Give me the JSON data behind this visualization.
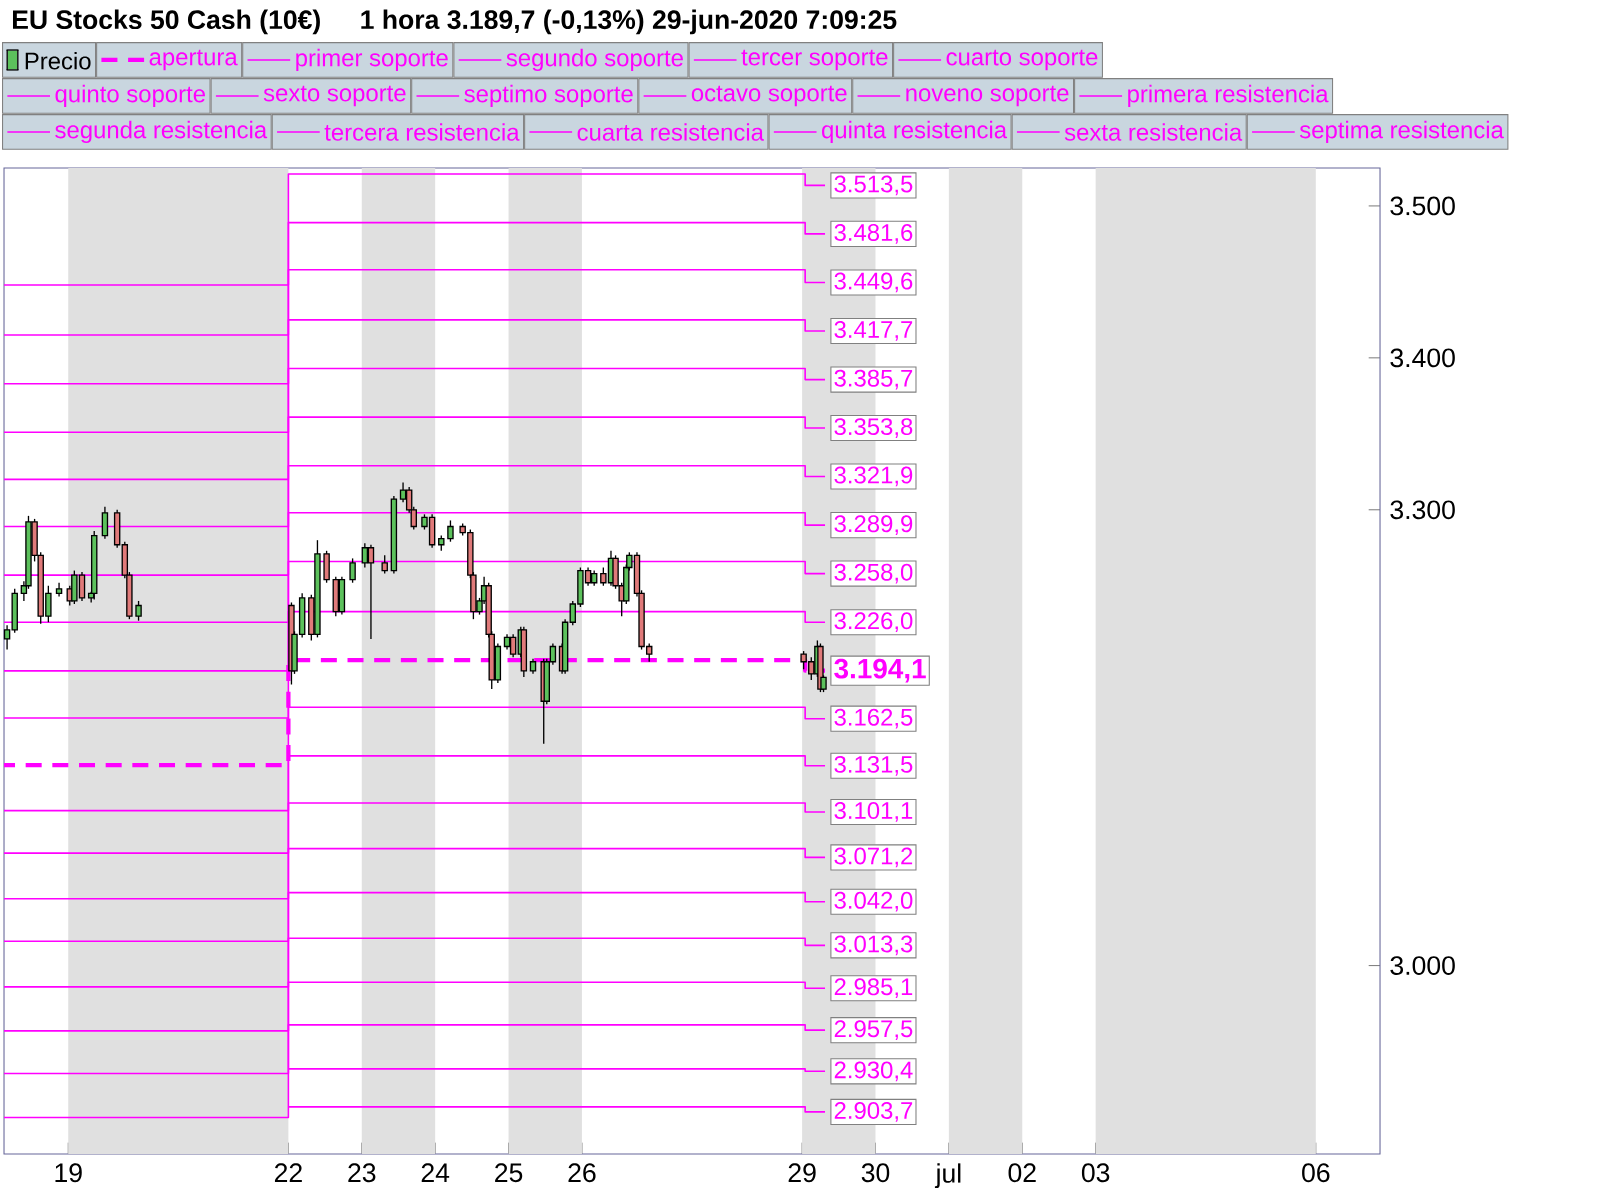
{
  "chart_data": {
    "type": "candlestick",
    "title": "EU Stocks 50 Cash (10€)",
    "subtitle": "1 hora   3.189,7 (-0,13%)   29-jun-2020 7:09:25",
    "xlim": [
      "2020-06-18T03:00",
      "2020-07-06T21:00"
    ],
    "xticks": [
      {
        "value": "2020-06-19",
        "label": "19"
      },
      {
        "value": "2020-06-22",
        "label": "22"
      },
      {
        "value": "2020-06-23",
        "label": "23"
      },
      {
        "value": "2020-06-24",
        "label": "24"
      },
      {
        "value": "2020-06-25",
        "label": "25"
      },
      {
        "value": "2020-06-26",
        "label": "26"
      },
      {
        "value": "2020-06-29",
        "label": "29"
      },
      {
        "value": "2020-06-30",
        "label": "30"
      },
      {
        "value": "2020-07-01",
        "label": "jul"
      },
      {
        "value": "2020-07-02",
        "label": "02"
      },
      {
        "value": "2020-07-03",
        "label": "03"
      },
      {
        "value": "2020-07-06",
        "label": "06"
      }
    ],
    "ylim": [
      2876,
      3525
    ],
    "yticks": [
      {
        "value": 3000,
        "label": "3.000"
      },
      {
        "value": 3300,
        "label": "3.300"
      },
      {
        "value": 3400,
        "label": "3.400"
      },
      {
        "value": 3500,
        "label": "3.500"
      }
    ],
    "legend": "top left",
    "bands": [
      {
        "axis": "x",
        "from": "2020-06-19",
        "to": "2020-06-22",
        "color": "#e0e0e0"
      },
      {
        "axis": "x",
        "from": "2020-06-23",
        "to": "2020-06-24",
        "color": "#e0e0e0"
      },
      {
        "axis": "x",
        "from": "2020-06-25",
        "to": "2020-06-26",
        "color": "#e0e0e0"
      },
      {
        "axis": "x",
        "from": "2020-06-29",
        "to": "2020-06-30",
        "color": "#e0e0e0"
      },
      {
        "axis": "x",
        "from": "2020-07-01",
        "to": "2020-07-02",
        "color": "#e0e0e0"
      },
      {
        "axis": "x",
        "from": "2020-07-03",
        "to": "2020-07-06",
        "color": "#e0e0e0"
      }
    ],
    "series": [
      {
        "type": "candlestick",
        "name": "Precio",
        "color": "#000000",
        "x": [
          "2020-06-18T04:00",
          "2020-06-18T06:30",
          "2020-06-18T09:30",
          "2020-06-18T11:00",
          "2020-06-18T13:00",
          "2020-06-18T15:00",
          "2020-06-18T17:30",
          "2020-06-18T21:00",
          "2020-06-19T00:30",
          "2020-06-19T02:00",
          "2020-06-19T04:30",
          "2020-06-19T07:30",
          "2020-06-19T08:30",
          "2020-06-19T12:00",
          "2020-06-19T16:00",
          "2020-06-19T18:30",
          "2020-06-19T20:00",
          "2020-06-19T23:00",
          "2020-06-22T01:00",
          "2020-06-22T02:00",
          "2020-06-22T04:30",
          "2020-06-22T07:30",
          "2020-06-22T09:30",
          "2020-06-22T12:30",
          "2020-06-22T15:30",
          "2020-06-22T17:30",
          "2020-06-22T21:00",
          "2020-06-23T01:00",
          "2020-06-23T03:00",
          "2020-06-23T07:30",
          "2020-06-23T10:30",
          "2020-06-23T13:30",
          "2020-06-23T15:30",
          "2020-06-23T17:00",
          "2020-06-23T20:30",
          "2020-06-23T23:00",
          "2020-06-24T02:00",
          "2020-06-24T05:00",
          "2020-06-24T09:00",
          "2020-06-24T11:30",
          "2020-06-24T12:30",
          "2020-06-24T14:30",
          "2020-06-24T16:00",
          "2020-06-24T17:30",
          "2020-06-24T18:30",
          "2020-06-24T20:30",
          "2020-06-24T23:30",
          "2020-06-25T01:30",
          "2020-06-25T04:00",
          "2020-06-25T05:00",
          "2020-06-25T08:00",
          "2020-06-25T11:30",
          "2020-06-25T12:30",
          "2020-06-25T14:30",
          "2020-06-25T17:30",
          "2020-06-25T18:30",
          "2020-06-25T21:00",
          "2020-06-25T23:30",
          "2020-06-26T02:00",
          "2020-06-26T04:00",
          "2020-06-26T07:00",
          "2020-06-26T09:30",
          "2020-06-26T11:00",
          "2020-06-26T13:00",
          "2020-06-26T14:30",
          "2020-06-26T15:30",
          "2020-06-26T18:00",
          "2020-06-26T19:30",
          "2020-06-26T22:00",
          "2020-06-29T00:30",
          "2020-06-29T03:00",
          "2020-06-29T05:00",
          "2020-06-29T06:00",
          "2020-06-29T07:00"
        ],
        "ohlc": [
          [
            3215,
            3224,
            3208,
            3221
          ],
          [
            3221,
            3248,
            3219,
            3245
          ],
          [
            3245,
            3253,
            3240,
            3250
          ],
          [
            3250,
            3296,
            3248,
            3292
          ],
          [
            3292,
            3294,
            3266,
            3270
          ],
          [
            3270,
            3272,
            3225,
            3230
          ],
          [
            3230,
            3250,
            3226,
            3245
          ],
          [
            3245,
            3252,
            3243,
            3248
          ],
          [
            3248,
            3250,
            3237,
            3240
          ],
          [
            3240,
            3260,
            3238,
            3257
          ],
          [
            3257,
            3259,
            3240,
            3242
          ],
          [
            3242,
            3246,
            3239,
            3245
          ],
          [
            3245,
            3286,
            3241,
            3283
          ],
          [
            3283,
            3302,
            3281,
            3298
          ],
          [
            3298,
            3300,
            3275,
            3277
          ],
          [
            3277,
            3279,
            3255,
            3257
          ],
          [
            3257,
            3259,
            3228,
            3230
          ],
          [
            3230,
            3240,
            3227,
            3237
          ],
          [
            3237,
            3239,
            3185,
            3194
          ],
          [
            3194,
            3220,
            3192,
            3218
          ],
          [
            3218,
            3245,
            3216,
            3242
          ],
          [
            3242,
            3244,
            3214,
            3218
          ],
          [
            3218,
            3280,
            3216,
            3271
          ],
          [
            3271,
            3273,
            3252,
            3254
          ],
          [
            3254,
            3256,
            3230,
            3233
          ],
          [
            3233,
            3256,
            3231,
            3254
          ],
          [
            3254,
            3268,
            3252,
            3265
          ],
          [
            3265,
            3278,
            3262,
            3275
          ],
          [
            3275,
            3277,
            3215,
            3265
          ],
          [
            3265,
            3270,
            3258,
            3260
          ],
          [
            3260,
            3309,
            3258,
            3307
          ],
          [
            3307,
            3318,
            3305,
            3313
          ],
          [
            3313,
            3315,
            3298,
            3300
          ],
          [
            3300,
            3302,
            3287,
            3289
          ],
          [
            3289,
            3297,
            3287,
            3295
          ],
          [
            3295,
            3297,
            3275,
            3277
          ],
          [
            3277,
            3283,
            3273,
            3281
          ],
          [
            3281,
            3293,
            3279,
            3289
          ],
          [
            3289,
            3291,
            3283,
            3285
          ],
          [
            3285,
            3287,
            3255,
            3257
          ],
          [
            3257,
            3259,
            3228,
            3233
          ],
          [
            3233,
            3242,
            3231,
            3240
          ],
          [
            3240,
            3256,
            3238,
            3250
          ],
          [
            3250,
            3252,
            3216,
            3218
          ],
          [
            3218,
            3220,
            3182,
            3188
          ],
          [
            3188,
            3212,
            3186,
            3210
          ],
          [
            3210,
            3218,
            3208,
            3216
          ],
          [
            3216,
            3218,
            3203,
            3205
          ],
          [
            3205,
            3223,
            3203,
            3221
          ],
          [
            3221,
            3223,
            3190,
            3194
          ],
          [
            3194,
            3202,
            3192,
            3200
          ],
          [
            3200,
            3202,
            3146,
            3174
          ],
          [
            3174,
            3202,
            3172,
            3200
          ],
          [
            3200,
            3212,
            3198,
            3210
          ],
          [
            3210,
            3212,
            3192,
            3194
          ],
          [
            3194,
            3228,
            3192,
            3226
          ],
          [
            3226,
            3240,
            3224,
            3238
          ],
          [
            3238,
            3262,
            3236,
            3260
          ],
          [
            3260,
            3262,
            3250,
            3252
          ],
          [
            3252,
            3260,
            3250,
            3258
          ],
          [
            3258,
            3262,
            3250,
            3252
          ],
          [
            3252,
            3273,
            3250,
            3268
          ],
          [
            3268,
            3270,
            3248,
            3250
          ],
          [
            3250,
            3252,
            3230,
            3240
          ],
          [
            3240,
            3264,
            3238,
            3262
          ],
          [
            3262,
            3272,
            3260,
            3270
          ],
          [
            3270,
            3272,
            3243,
            3245
          ],
          [
            3245,
            3247,
            3208,
            3210
          ],
          [
            3210,
            3212,
            3200,
            3205
          ],
          [
            3205,
            3207,
            3195,
            3200
          ],
          [
            3200,
            3203,
            3188,
            3192
          ],
          [
            3192,
            3214,
            3190,
            3210
          ],
          [
            3210,
            3212,
            3180,
            3182
          ],
          [
            3182,
            3191,
            3180,
            3189.7
          ]
        ]
      },
      {
        "type": "step",
        "name": "apertura",
        "color": "#ff00ff",
        "line_style": "dashed",
        "x": [
          "2020-06-18T03:00",
          "2020-06-22",
          "2020-06-29T01:00",
          "2020-06-29T07:30"
        ],
        "values": [
          3132,
          3201,
          3194.1,
          3194.1
        ],
        "value_labels": [
          null,
          null,
          null,
          "3.194,1"
        ]
      },
      {
        "type": "step",
        "name": "primer soporte",
        "color": "#ff00ff",
        "x": [
          "2020-06-18T03:00",
          "2020-06-22",
          "2020-06-29T01:00",
          "2020-06-29T07:30"
        ],
        "values": [
          3102,
          3170,
          3162.5,
          3162.5
        ],
        "value_labels": [
          null,
          null,
          null,
          "3.162,5"
        ]
      },
      {
        "type": "step",
        "name": "segundo soporte",
        "color": "#ff00ff",
        "x": [
          "2020-06-18T03:00",
          "2020-06-22",
          "2020-06-29T01:00",
          "2020-06-29T07:30"
        ],
        "values": [
          3074,
          3138,
          3131.5,
          3131.5
        ],
        "value_labels": [
          null,
          null,
          null,
          "3.131,5"
        ]
      },
      {
        "type": "step",
        "name": "tercer soporte",
        "color": "#ff00ff",
        "x": [
          "2020-06-18T03:00",
          "2020-06-22",
          "2020-06-29T01:00",
          "2020-06-29T07:30"
        ],
        "values": [
          3044,
          3107,
          3101.1,
          3101.1
        ],
        "value_labels": [
          null,
          null,
          null,
          "3.101,1"
        ]
      },
      {
        "type": "step",
        "name": "cuarto soporte",
        "color": "#ff00ff",
        "x": [
          "2020-06-18T03:00",
          "2020-06-22",
          "2020-06-29T01:00",
          "2020-06-29T07:30"
        ],
        "values": [
          3016,
          3077,
          3071.2,
          3071.2
        ],
        "value_labels": [
          null,
          null,
          null,
          "3.071,2"
        ]
      },
      {
        "type": "step",
        "name": "quinto soporte",
        "color": "#ff00ff",
        "x": [
          "2020-06-18T03:00",
          "2020-06-22",
          "2020-06-29T01:00",
          "2020-06-29T07:30"
        ],
        "values": [
          2986,
          3048,
          3042.0,
          3042.0
        ],
        "value_labels": [
          null,
          null,
          null,
          "3.042,0"
        ]
      },
      {
        "type": "step",
        "name": "sexto soporte",
        "color": "#ff00ff",
        "x": [
          "2020-06-18T03:00",
          "2020-06-22",
          "2020-06-29T01:00",
          "2020-06-29T07:30"
        ],
        "values": [
          2957,
          3018,
          3013.3,
          3013.3
        ],
        "value_labels": [
          null,
          null,
          null,
          "3.013,3"
        ]
      },
      {
        "type": "step",
        "name": "septimo soporte",
        "color": "#ff00ff",
        "x": [
          "2020-06-18T03:00",
          "2020-06-22",
          "2020-06-29T01:00",
          "2020-06-29T07:30"
        ],
        "values": [
          2929,
          2989,
          2985.1,
          2985.1
        ],
        "value_labels": [
          null,
          null,
          null,
          "2.985,1"
        ]
      },
      {
        "type": "step",
        "name": "octavo soporte",
        "color": "#ff00ff",
        "x": [
          "2020-06-18T03:00",
          "2020-06-22",
          "2020-06-29T01:00",
          "2020-06-29T07:30"
        ],
        "values": [
          2900,
          2961,
          2957.5,
          2957.5
        ],
        "value_labels": [
          null,
          null,
          null,
          "2.957,5"
        ]
      },
      {
        "type": "step",
        "name": "noveno soporte",
        "color": "#ff00ff",
        "x": [
          "2020-06-22",
          "2020-06-29T01:00",
          "2020-06-29T07:30"
        ],
        "values": [
          2932,
          2930.4,
          2930.4
        ],
        "value_labels": [
          null,
          null,
          "2.930,4"
        ]
      },
      {
        "type": "step",
        "name": "primera resistencia",
        "color": "#ff00ff",
        "x": [
          "2020-06-18T03:00",
          "2020-06-22",
          "2020-06-29T01:00",
          "2020-06-29T07:30"
        ],
        "values": [
          3163,
          3233,
          3226.0,
          3226.0
        ],
        "value_labels": [
          null,
          null,
          null,
          "3.226,0"
        ]
      },
      {
        "type": "step",
        "name": "segunda resistencia",
        "color": "#ff00ff",
        "x": [
          "2020-06-18T03:00",
          "2020-06-22",
          "2020-06-29T01:00",
          "2020-06-29T07:30"
        ],
        "values": [
          3194,
          3266,
          3258.0,
          3258.0
        ],
        "value_labels": [
          null,
          null,
          null,
          "3.258,0"
        ]
      },
      {
        "type": "step",
        "name": "tercera resistencia",
        "color": "#ff00ff",
        "x": [
          "2020-06-18T03:00",
          "2020-06-22",
          "2020-06-29T01:00",
          "2020-06-29T07:30"
        ],
        "values": [
          3226,
          3298,
          3289.9,
          3289.9
        ],
        "value_labels": [
          null,
          null,
          null,
          "3.289,9"
        ]
      },
      {
        "type": "step",
        "name": "cuarta resistencia",
        "color": "#ff00ff",
        "x": [
          "2020-06-18T03:00",
          "2020-06-22",
          "2020-06-29T01:00",
          "2020-06-29T07:30"
        ],
        "values": [
          3257,
          3329,
          3321.9,
          3321.9
        ],
        "value_labels": [
          null,
          null,
          null,
          "3.321,9"
        ]
      },
      {
        "type": "step",
        "name": "quinta resistencia",
        "color": "#ff00ff",
        "x": [
          "2020-06-18T03:00",
          "2020-06-22",
          "2020-06-29T01:00",
          "2020-06-29T07:30"
        ],
        "values": [
          3289,
          3361,
          3353.8,
          3353.8
        ],
        "value_labels": [
          null,
          null,
          null,
          "3.353,8"
        ]
      },
      {
        "type": "step",
        "name": "sexta resistencia",
        "color": "#ff00ff",
        "x": [
          "2020-06-18T03:00",
          "2020-06-22",
          "2020-06-29T01:00",
          "2020-06-29T07:30"
        ],
        "values": [
          3320,
          3393,
          3385.7,
          3385.7
        ],
        "value_labels": [
          null,
          null,
          null,
          "3.385,7"
        ]
      },
      {
        "type": "step",
        "name": "septima resistencia",
        "color": "#ff00ff",
        "x": [
          "2020-06-18T03:00",
          "2020-06-22",
          "2020-06-29T01:00",
          "2020-06-29T07:30"
        ],
        "values": [
          3351,
          3425,
          3417.7,
          3417.7
        ],
        "value_labels": [
          null,
          null,
          null,
          "3.417,7"
        ]
      },
      {
        "type": "step",
        "color": "#ff00ff",
        "x": [
          "2020-06-22",
          "2020-06-29T01:00",
          "2020-06-29T07:30"
        ],
        "values": [
          2907,
          2903.7,
          2903.7
        ],
        "value_labels": [
          null,
          null,
          "2.903,7"
        ]
      },
      {
        "type": "step",
        "color": "#ff00ff",
        "x": [
          "2020-06-18T03:00",
          "2020-06-22",
          "2020-06-29T01:00",
          "2020-06-29T07:30"
        ],
        "values": [
          3383,
          3458,
          3449.6,
          3449.6
        ],
        "value_labels": [
          null,
          null,
          null,
          "3.449,6"
        ]
      },
      {
        "type": "step",
        "color": "#ff00ff",
        "x": [
          "2020-06-18T03:00",
          "2020-06-22",
          "2020-06-29T01:00",
          "2020-06-29T07:30"
        ],
        "values": [
          3415,
          3489,
          3481.6,
          3481.6
        ],
        "value_labels": [
          null,
          null,
          null,
          "3.481,6"
        ]
      },
      {
        "type": "step",
        "color": "#ff00ff",
        "x": [
          "2020-06-18T03:00",
          "2020-06-22",
          "2020-06-29T01:00",
          "2020-06-29T07:30"
        ],
        "values": [
          3448,
          3521,
          3513.5,
          3513.5
        ],
        "value_labels": [
          null,
          null,
          null,
          "3.513,5"
        ]
      }
    ]
  }
}
